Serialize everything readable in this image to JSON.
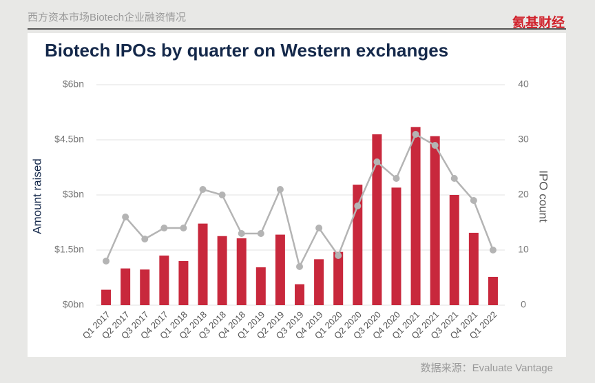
{
  "header": {
    "title": "西方资本市场Biotech企业融资情况",
    "logo": "氦基财经"
  },
  "source": "数据来源：Evaluate Vantage",
  "chart_data": {
    "type": "combo",
    "title": "Biotech IPOs by quarter on Western exchanges",
    "categories": [
      "Q1 2017",
      "Q2 2017",
      "Q3 2017",
      "Q4 2017",
      "Q1 2018",
      "Q2 2018",
      "Q3 2018",
      "Q4 2018",
      "Q1 2019",
      "Q2 2019",
      "Q3 2019",
      "Q4 2019",
      "Q1 2020",
      "Q2 2020",
      "Q3 2020",
      "Q4 2020",
      "Q1 2021",
      "Q2 2021",
      "Q3 2021",
      "Q4 2021",
      "Q1 2022"
    ],
    "series": [
      {
        "type": "bar",
        "color": "#c8283c",
        "values": [
          0.42,
          1.0,
          0.97,
          1.35,
          1.2,
          2.22,
          1.88,
          1.82,
          1.03,
          1.92,
          0.57,
          1.25,
          1.45,
          3.28,
          4.65,
          3.2,
          4.85,
          4.6,
          3.0,
          1.97,
          0.77
        ]
      },
      {
        "type": "line",
        "axis": "y2",
        "color": "#b4b4b4",
        "values": [
          8,
          16,
          12,
          14,
          14,
          21,
          20,
          13,
          13,
          21,
          7,
          14,
          9,
          18,
          26,
          23,
          31,
          29,
          23,
          19,
          10
        ]
      }
    ],
    "ylabel": "Amount raised",
    "y2label": "IPO count",
    "ylim": [
      0,
      6
    ],
    "yticks": [
      {
        "value": 0,
        "label": "$0bn"
      },
      {
        "value": 1.5,
        "label": "$1.5bn"
      },
      {
        "value": 3,
        "label": "$3bn"
      },
      {
        "value": 4.5,
        "label": "$4.5bn"
      },
      {
        "value": 6,
        "label": "$6bn"
      }
    ],
    "y2lim": [
      0,
      40
    ],
    "y2ticks": [
      0,
      10,
      20,
      30,
      40
    ],
    "grid": true
  }
}
